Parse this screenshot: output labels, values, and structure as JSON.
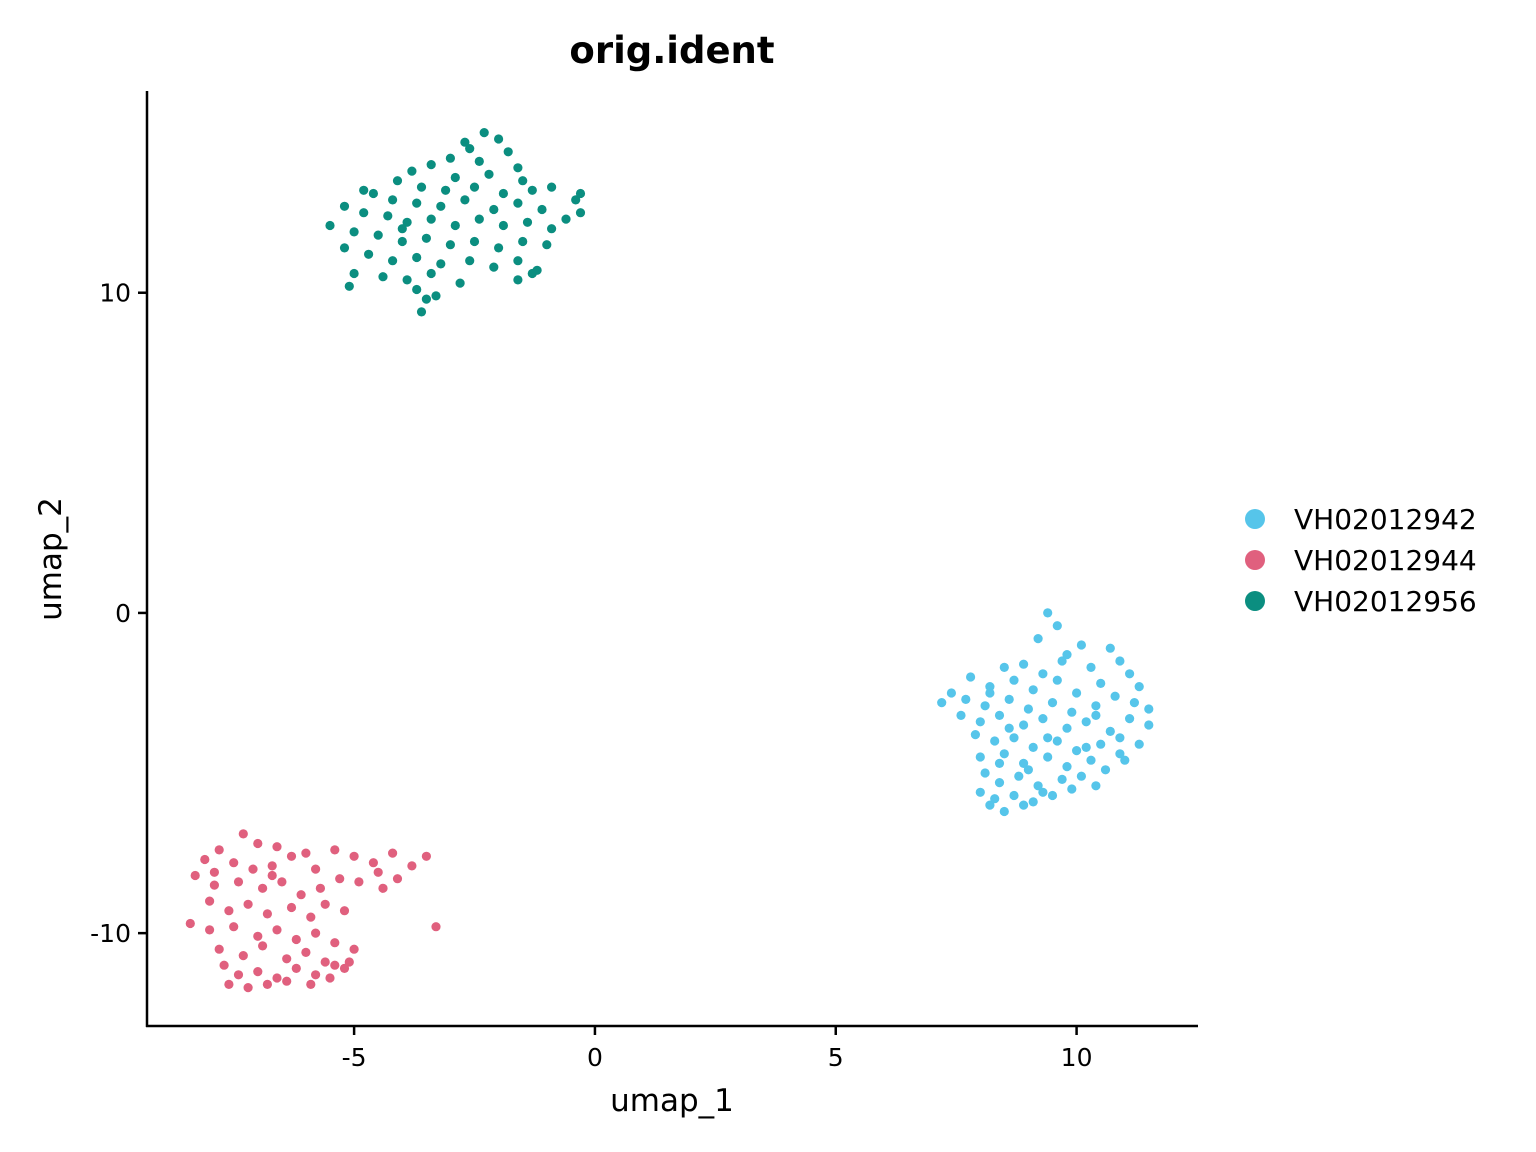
{
  "chart_data": {
    "type": "scatter",
    "title": "orig.ident",
    "xlabel": "umap_1",
    "ylabel": "umap_2",
    "xlim": [
      -9.3,
      12.5
    ],
    "ylim": [
      -12.9,
      16.3
    ],
    "x_ticks": [
      -5,
      0,
      5,
      10
    ],
    "x_tick_labels": [
      "-5",
      "0",
      "5",
      "10"
    ],
    "y_ticks": [
      -10,
      0,
      10
    ],
    "y_tick_labels": [
      "-10",
      "0",
      "10"
    ],
    "grid": false,
    "legend_position": "right",
    "series": [
      {
        "name": "VH02012942",
        "color": "#56C5EA",
        "points": [
          [
            9.4,
            0.0
          ],
          [
            9.6,
            -0.4
          ],
          [
            9.2,
            -0.8
          ],
          [
            10.1,
            -1.0
          ],
          [
            10.7,
            -1.1
          ],
          [
            9.8,
            -1.3
          ],
          [
            8.5,
            -1.7
          ],
          [
            8.9,
            -1.6
          ],
          [
            9.3,
            -1.9
          ],
          [
            10.3,
            -1.7
          ],
          [
            10.9,
            -1.5
          ],
          [
            11.1,
            -1.9
          ],
          [
            7.8,
            -2.0
          ],
          [
            8.2,
            -2.3
          ],
          [
            8.7,
            -2.1
          ],
          [
            9.1,
            -2.4
          ],
          [
            9.6,
            -2.1
          ],
          [
            10.0,
            -2.5
          ],
          [
            10.5,
            -2.2
          ],
          [
            11.3,
            -2.3
          ],
          [
            7.4,
            -2.5
          ],
          [
            7.7,
            -2.7
          ],
          [
            8.1,
            -2.9
          ],
          [
            8.6,
            -2.7
          ],
          [
            9.0,
            -3.0
          ],
          [
            9.5,
            -2.8
          ],
          [
            9.9,
            -3.1
          ],
          [
            10.4,
            -2.9
          ],
          [
            10.8,
            -2.6
          ],
          [
            11.2,
            -2.8
          ],
          [
            11.5,
            -3.0
          ],
          [
            7.2,
            -2.8
          ],
          [
            7.6,
            -3.2
          ],
          [
            8.0,
            -3.4
          ],
          [
            8.4,
            -3.2
          ],
          [
            8.9,
            -3.5
          ],
          [
            9.3,
            -3.3
          ],
          [
            9.8,
            -3.6
          ],
          [
            10.2,
            -3.4
          ],
          [
            10.7,
            -3.7
          ],
          [
            11.1,
            -3.3
          ],
          [
            11.5,
            -3.5
          ],
          [
            7.9,
            -3.8
          ],
          [
            8.3,
            -4.0
          ],
          [
            8.7,
            -3.9
          ],
          [
            9.1,
            -4.2
          ],
          [
            9.6,
            -4.0
          ],
          [
            10.0,
            -4.3
          ],
          [
            10.5,
            -4.1
          ],
          [
            10.9,
            -3.9
          ],
          [
            11.3,
            -4.1
          ],
          [
            8.0,
            -4.5
          ],
          [
            8.5,
            -4.4
          ],
          [
            8.9,
            -4.7
          ],
          [
            9.4,
            -4.5
          ],
          [
            9.8,
            -4.8
          ],
          [
            10.3,
            -4.6
          ],
          [
            10.6,
            -4.9
          ],
          [
            11.0,
            -4.6
          ],
          [
            8.1,
            -5.0
          ],
          [
            8.4,
            -5.3
          ],
          [
            8.8,
            -5.1
          ],
          [
            9.2,
            -5.4
          ],
          [
            9.7,
            -5.2
          ],
          [
            10.1,
            -5.1
          ],
          [
            10.4,
            -5.4
          ],
          [
            8.0,
            -5.6
          ],
          [
            8.3,
            -5.8
          ],
          [
            8.7,
            -5.7
          ],
          [
            9.1,
            -5.9
          ],
          [
            9.5,
            -5.7
          ],
          [
            8.2,
            -6.0
          ],
          [
            8.5,
            -6.2
          ],
          [
            8.9,
            -6.0
          ],
          [
            9.3,
            -5.6
          ],
          [
            9.9,
            -5.5
          ],
          [
            10.2,
            -4.2
          ],
          [
            9.4,
            -3.9
          ],
          [
            8.6,
            -3.6
          ],
          [
            8.2,
            -2.5
          ],
          [
            9.7,
            -1.5
          ],
          [
            10.4,
            -3.2
          ],
          [
            10.9,
            -4.4
          ],
          [
            9.0,
            -4.9
          ],
          [
            8.4,
            -4.7
          ]
        ]
      },
      {
        "name": "VH02012944",
        "color": "#E0607E",
        "points": [
          [
            -7.3,
            -6.9
          ],
          [
            -7.0,
            -7.2
          ],
          [
            -6.6,
            -7.3
          ],
          [
            -7.8,
            -7.4
          ],
          [
            -8.1,
            -7.7
          ],
          [
            -7.5,
            -7.8
          ],
          [
            -7.1,
            -8.0
          ],
          [
            -6.7,
            -7.9
          ],
          [
            -6.3,
            -7.6
          ],
          [
            -5.8,
            -8.0
          ],
          [
            -5.4,
            -7.4
          ],
          [
            -5.0,
            -7.6
          ],
          [
            -4.6,
            -7.8
          ],
          [
            -4.2,
            -7.5
          ],
          [
            -3.8,
            -7.9
          ],
          [
            -3.5,
            -7.6
          ],
          [
            -8.3,
            -8.2
          ],
          [
            -7.9,
            -8.5
          ],
          [
            -7.4,
            -8.4
          ],
          [
            -6.9,
            -8.6
          ],
          [
            -6.5,
            -8.4
          ],
          [
            -6.1,
            -8.8
          ],
          [
            -5.7,
            -8.6
          ],
          [
            -5.3,
            -8.3
          ],
          [
            -4.9,
            -8.4
          ],
          [
            -4.5,
            -8.1
          ],
          [
            -4.1,
            -8.3
          ],
          [
            -8.0,
            -9.0
          ],
          [
            -7.6,
            -9.3
          ],
          [
            -7.2,
            -9.1
          ],
          [
            -6.8,
            -9.4
          ],
          [
            -6.3,
            -9.2
          ],
          [
            -5.9,
            -9.5
          ],
          [
            -5.6,
            -9.1
          ],
          [
            -5.2,
            -9.3
          ],
          [
            -8.4,
            -9.7
          ],
          [
            -8.0,
            -9.9
          ],
          [
            -7.5,
            -9.8
          ],
          [
            -7.0,
            -10.1
          ],
          [
            -6.6,
            -9.9
          ],
          [
            -6.2,
            -10.2
          ],
          [
            -5.8,
            -10.0
          ],
          [
            -5.4,
            -10.3
          ],
          [
            -5.0,
            -10.5
          ],
          [
            -7.8,
            -10.5
          ],
          [
            -7.3,
            -10.7
          ],
          [
            -6.9,
            -10.4
          ],
          [
            -6.4,
            -10.8
          ],
          [
            -6.0,
            -10.6
          ],
          [
            -5.6,
            -10.9
          ],
          [
            -5.2,
            -11.1
          ],
          [
            -7.7,
            -11.0
          ],
          [
            -7.4,
            -11.3
          ],
          [
            -7.0,
            -11.2
          ],
          [
            -6.6,
            -11.4
          ],
          [
            -6.2,
            -11.1
          ],
          [
            -5.8,
            -11.3
          ],
          [
            -5.4,
            -11.0
          ],
          [
            -7.6,
            -11.6
          ],
          [
            -7.2,
            -11.7
          ],
          [
            -6.8,
            -11.6
          ],
          [
            -6.4,
            -11.5
          ],
          [
            -5.9,
            -11.6
          ],
          [
            -5.5,
            -11.4
          ],
          [
            -7.9,
            -8.1
          ],
          [
            -6.0,
            -7.5
          ],
          [
            -4.4,
            -8.6
          ],
          [
            -6.7,
            -8.2
          ],
          [
            -5.1,
            -10.9
          ],
          [
            -3.3,
            -9.8
          ]
        ]
      },
      {
        "name": "VH02012956",
        "color": "#0B8E80",
        "points": [
          [
            -2.3,
            15.0
          ],
          [
            -2.0,
            14.8
          ],
          [
            -2.6,
            14.5
          ],
          [
            -1.8,
            14.4
          ],
          [
            -3.0,
            14.2
          ],
          [
            -3.4,
            14.0
          ],
          [
            -2.4,
            14.1
          ],
          [
            -1.6,
            13.9
          ],
          [
            -3.8,
            13.8
          ],
          [
            -2.9,
            13.6
          ],
          [
            -2.2,
            13.7
          ],
          [
            -1.5,
            13.5
          ],
          [
            -4.1,
            13.5
          ],
          [
            -3.6,
            13.3
          ],
          [
            -3.1,
            13.2
          ],
          [
            -2.5,
            13.3
          ],
          [
            -1.9,
            13.1
          ],
          [
            -1.3,
            13.2
          ],
          [
            -0.9,
            13.3
          ],
          [
            -4.6,
            13.1
          ],
          [
            -4.2,
            12.9
          ],
          [
            -3.7,
            12.8
          ],
          [
            -3.2,
            12.7
          ],
          [
            -2.7,
            12.9
          ],
          [
            -2.1,
            12.6
          ],
          [
            -1.6,
            12.8
          ],
          [
            -1.1,
            12.6
          ],
          [
            -0.4,
            12.9
          ],
          [
            -0.3,
            13.1
          ],
          [
            -5.2,
            12.7
          ],
          [
            -4.8,
            12.5
          ],
          [
            -4.3,
            12.4
          ],
          [
            -3.9,
            12.2
          ],
          [
            -3.4,
            12.3
          ],
          [
            -2.9,
            12.1
          ],
          [
            -2.4,
            12.3
          ],
          [
            -1.9,
            12.1
          ],
          [
            -1.4,
            12.2
          ],
          [
            -0.9,
            12.0
          ],
          [
            -0.6,
            12.3
          ],
          [
            -5.5,
            12.1
          ],
          [
            -5.0,
            11.9
          ],
          [
            -4.5,
            11.8
          ],
          [
            -4.0,
            11.6
          ],
          [
            -3.5,
            11.7
          ],
          [
            -3.0,
            11.5
          ],
          [
            -2.5,
            11.6
          ],
          [
            -2.0,
            11.4
          ],
          [
            -1.5,
            11.6
          ],
          [
            -1.0,
            11.5
          ],
          [
            -5.2,
            11.4
          ],
          [
            -4.7,
            11.2
          ],
          [
            -4.2,
            11.0
          ],
          [
            -3.7,
            11.1
          ],
          [
            -3.2,
            10.9
          ],
          [
            -2.6,
            11.0
          ],
          [
            -2.1,
            10.8
          ],
          [
            -1.6,
            11.0
          ],
          [
            -1.2,
            10.7
          ],
          [
            -5.0,
            10.6
          ],
          [
            -4.4,
            10.5
          ],
          [
            -3.9,
            10.4
          ],
          [
            -3.4,
            10.6
          ],
          [
            -2.8,
            10.3
          ],
          [
            -1.6,
            10.4
          ],
          [
            -5.1,
            10.2
          ],
          [
            -3.7,
            10.1
          ],
          [
            -3.5,
            9.8
          ],
          [
            -3.6,
            9.4
          ],
          [
            -3.3,
            9.9
          ],
          [
            -1.3,
            10.6
          ],
          [
            -4.8,
            13.2
          ],
          [
            -0.3,
            12.5
          ],
          [
            -2.7,
            14.7
          ],
          [
            -4.0,
            12.0
          ]
        ]
      }
    ]
  }
}
